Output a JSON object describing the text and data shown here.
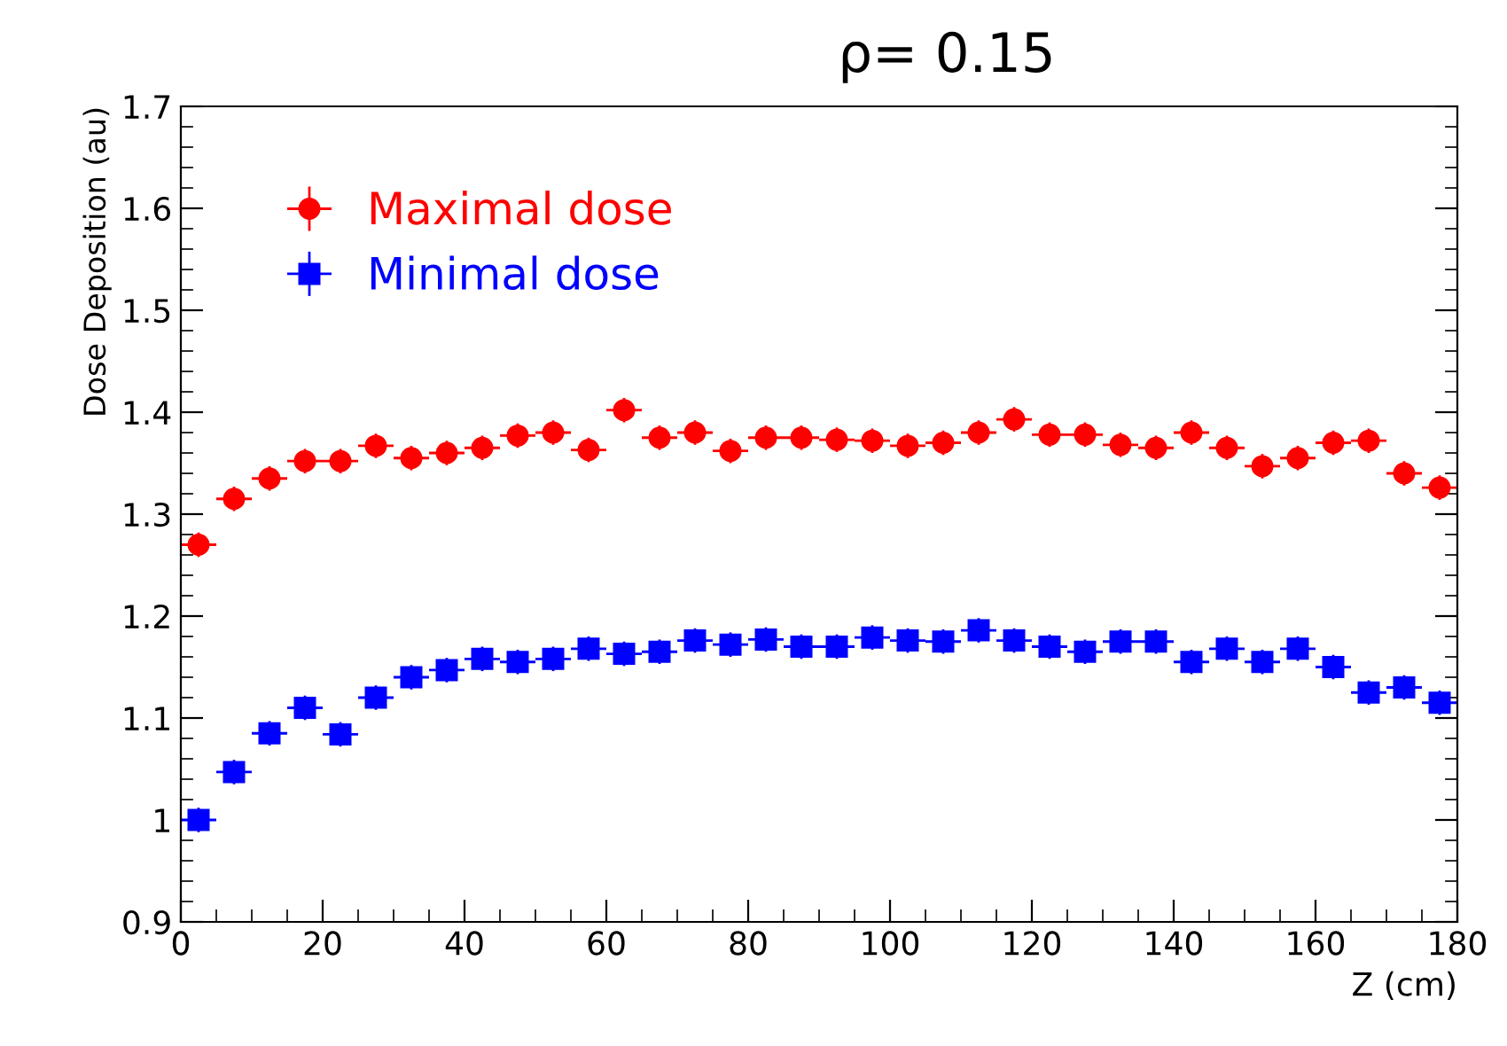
{
  "chart_data": {
    "type": "scatter",
    "title": "ρ= 0.15",
    "xlabel": "Z (cm)",
    "ylabel": "Dose Deposition (au)",
    "x": [
      2.5,
      7.5,
      12.5,
      17.5,
      22.5,
      27.5,
      32.5,
      37.5,
      42.5,
      47.5,
      52.5,
      57.5,
      62.5,
      67.5,
      72.5,
      77.5,
      82.5,
      87.5,
      92.5,
      97.5,
      102.5,
      107.5,
      112.5,
      117.5,
      122.5,
      127.5,
      132.5,
      137.5,
      142.5,
      147.5,
      152.5,
      157.5,
      162.5,
      167.5,
      172.5,
      177.5
    ],
    "series": [
      {
        "name": "Maximal dose",
        "color": "#ff0000",
        "marker": "circle",
        "values": [
          1.27,
          1.315,
          1.335,
          1.352,
          1.352,
          1.367,
          1.355,
          1.36,
          1.365,
          1.377,
          1.38,
          1.363,
          1.402,
          1.375,
          1.38,
          1.362,
          1.375,
          1.375,
          1.373,
          1.372,
          1.367,
          1.37,
          1.38,
          1.393,
          1.378,
          1.378,
          1.368,
          1.365,
          1.38,
          1.365,
          1.347,
          1.355,
          1.37,
          1.372,
          1.34,
          1.326
        ],
        "errors": [
          0.012,
          0.012,
          0.012,
          0.012,
          0.012,
          0.012,
          0.012,
          0.012,
          0.012,
          0.012,
          0.012,
          0.012,
          0.012,
          0.012,
          0.012,
          0.012,
          0.012,
          0.012,
          0.012,
          0.012,
          0.012,
          0.012,
          0.012,
          0.012,
          0.012,
          0.012,
          0.012,
          0.012,
          0.012,
          0.012,
          0.012,
          0.012,
          0.012,
          0.012,
          0.012,
          0.012
        ],
        "xerrors": [
          2.5,
          2.5,
          2.5,
          2.5,
          2.5,
          2.5,
          2.5,
          2.5,
          2.5,
          2.5,
          2.5,
          2.5,
          2.5,
          2.5,
          2.5,
          2.5,
          2.5,
          2.5,
          2.5,
          2.5,
          2.5,
          2.5,
          2.5,
          2.5,
          2.5,
          2.5,
          2.5,
          2.5,
          2.5,
          2.5,
          2.5,
          2.5,
          2.5,
          2.5,
          2.5,
          2.5
        ]
      },
      {
        "name": "Minimal dose",
        "color": "#0000ff",
        "marker": "square",
        "values": [
          1.0,
          1.047,
          1.085,
          1.11,
          1.084,
          1.12,
          1.14,
          1.147,
          1.158,
          1.155,
          1.158,
          1.168,
          1.163,
          1.165,
          1.176,
          1.172,
          1.177,
          1.17,
          1.17,
          1.179,
          1.176,
          1.175,
          1.186,
          1.176,
          1.17,
          1.165,
          1.175,
          1.175,
          1.155,
          1.168,
          1.155,
          1.168,
          1.15,
          1.125,
          1.13,
          1.115
        ],
        "errors": [
          0.012,
          0.012,
          0.012,
          0.012,
          0.012,
          0.012,
          0.012,
          0.012,
          0.012,
          0.012,
          0.012,
          0.012,
          0.012,
          0.012,
          0.012,
          0.012,
          0.012,
          0.012,
          0.012,
          0.012,
          0.012,
          0.012,
          0.012,
          0.012,
          0.012,
          0.012,
          0.012,
          0.012,
          0.012,
          0.012,
          0.012,
          0.012,
          0.012,
          0.012,
          0.012,
          0.012
        ],
        "xerrors": [
          2.5,
          2.5,
          2.5,
          2.5,
          2.5,
          2.5,
          2.5,
          2.5,
          2.5,
          2.5,
          2.5,
          2.5,
          2.5,
          2.5,
          2.5,
          2.5,
          2.5,
          2.5,
          2.5,
          2.5,
          2.5,
          2.5,
          2.5,
          2.5,
          2.5,
          2.5,
          2.5,
          2.5,
          2.5,
          2.5,
          2.5,
          2.5,
          2.5,
          2.5,
          2.5,
          2.5
        ]
      }
    ],
    "xlim": [
      0,
      180
    ],
    "xticks": [
      0,
      20,
      40,
      60,
      80,
      100,
      120,
      140,
      160,
      180
    ],
    "ylim": [
      0.9,
      1.7
    ],
    "yticks": [
      0.9,
      1,
      1.1,
      1.2,
      1.3,
      1.4,
      1.5,
      1.6,
      1.7
    ],
    "grid": false,
    "legend": "top left"
  }
}
